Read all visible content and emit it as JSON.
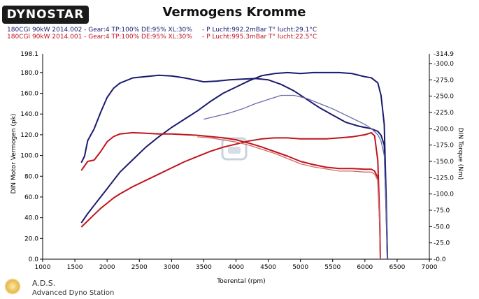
{
  "header": {
    "logo_text": "DYNOSTAR",
    "logo_sub": "",
    "title": "Vermogens Kromme",
    "runs": [
      {
        "label": "180CGI 90kW 2014.002 - Gear:4 TP:100% DE:95% XL:30%     - P Lucht:992.2mBar T° lucht:29.1°C",
        "color": "#1a1a6e"
      },
      {
        "label": "180CGI 90kW 2014.001 - Gear:4 TP:100% DE:95% XL:30%     - P Lucht:995.3mBar T° lucht:22.5°C",
        "color": "#c0141c"
      }
    ]
  },
  "footer": {
    "name": "A.D.S.",
    "subtitle": "Advanced Dyno Station"
  },
  "chart_data": {
    "type": "line",
    "xlabel": "Toerental (rpm)",
    "ylabel": "DIN Motor Vermogen (pk)",
    "y2label": "DIN Torque (Nm)",
    "xlim": [
      1000,
      7000
    ],
    "ylim": [
      0,
      198.1
    ],
    "y2lim": [
      0,
      -314.9
    ],
    "x_ticks": [
      1000,
      1500,
      2000,
      2500,
      3000,
      3500,
      4000,
      4500,
      5000,
      5500,
      6000,
      6500,
      7000
    ],
    "y_ticks": [
      0,
      20,
      40,
      60,
      80,
      100,
      120,
      140,
      160,
      180
    ],
    "y_tick_labels": [
      "0.0",
      "20.0",
      "40.0",
      "60.0",
      "80.0",
      "100.0",
      "120.0",
      "140.0",
      "160.0",
      "180.0"
    ],
    "y_top_label": "198.1",
    "y2_ticks": [
      0,
      -25,
      -50,
      -75,
      -100,
      -125,
      -150,
      -175,
      -200,
      -225,
      -250,
      -275,
      -300
    ],
    "y2_tick_labels": [
      "-0.0",
      "-25.0",
      "-50.0",
      "-75.0",
      "-100.0",
      "-125.0",
      "-150.0",
      "-175.0",
      "-200.0",
      "-225.0",
      "-250.0",
      "-275.0",
      "-300.0"
    ],
    "y2_top_label": "-314.9",
    "grid": false,
    "series": [
      {
        "color": "#1a1a6e",
        "axis": "y",
        "width": 2,
        "x": [
          1600,
          1700,
          1800,
          1900,
          2000,
          2100,
          2200,
          2400,
          2600,
          2800,
          3000,
          3200,
          3400,
          3600,
          3800,
          4000,
          4200,
          4400,
          4600,
          4800,
          5000,
          5200,
          5400,
          5600,
          5800,
          6000,
          6100,
          6200,
          6250,
          6300,
          6330,
          6350
        ],
        "y": [
          35,
          44,
          52,
          60,
          68,
          76,
          84,
          96,
          108,
          118,
          127,
          135,
          143,
          152,
          160,
          166,
          172,
          177,
          179,
          180,
          179,
          180,
          180,
          180,
          179,
          176,
          175,
          170,
          158,
          130,
          60,
          0
        ]
      },
      {
        "color": "#c0141c",
        "axis": "y",
        "width": 2,
        "x": [
          1600,
          1700,
          1800,
          1900,
          2000,
          2100,
          2200,
          2400,
          2600,
          2800,
          3000,
          3200,
          3400,
          3600,
          3800,
          4000,
          4200,
          4400,
          4600,
          4800,
          5000,
          5200,
          5400,
          5600,
          5800,
          6000,
          6100,
          6150,
          6200,
          6230,
          6240
        ],
        "y": [
          31,
          37,
          43,
          49,
          54,
          59,
          63,
          70,
          76,
          82,
          88,
          94,
          99,
          104,
          108,
          111,
          114,
          116,
          117,
          117,
          116,
          116,
          116,
          117,
          118,
          120,
          122,
          119,
          95,
          40,
          0
        ]
      },
      {
        "color": "#1a1a6e",
        "axis": "y2",
        "width": 2,
        "x": [
          1600,
          1650,
          1700,
          1800,
          1900,
          2000,
          2100,
          2200,
          2400,
          2600,
          2800,
          3000,
          3200,
          3400,
          3500,
          3700,
          3900,
          4100,
          4300,
          4500,
          4700,
          4900,
          5100,
          5300,
          5500,
          5700,
          5900,
          6000,
          6100,
          6200,
          6250,
          6300,
          6330,
          6350
        ],
        "y": [
          -148,
          -158,
          -182,
          -200,
          -225,
          -248,
          -262,
          -270,
          -278,
          -280,
          -282,
          -281,
          -278,
          -274,
          -272,
          -273,
          -275,
          -276,
          -277,
          -275,
          -268,
          -258,
          -245,
          -232,
          -221,
          -210,
          -204,
          -202,
          -200,
          -196,
          -190,
          -175,
          -80,
          0
        ]
      },
      {
        "color": "#6a6aa8",
        "axis": "y",
        "width": 1.3,
        "x": [
          3500,
          3700,
          3900,
          4100,
          4300,
          4500,
          4700,
          4900,
          5100,
          5300,
          5500,
          5700,
          5900,
          6000,
          6100,
          6200,
          6250,
          6300,
          6330,
          6350
        ],
        "y": [
          135,
          138,
          141,
          145,
          150,
          154,
          158,
          158,
          155,
          150,
          145,
          139,
          133,
          130,
          126,
          120,
          114,
          100,
          45,
          0
        ]
      },
      {
        "color": "#c0141c",
        "axis": "y2",
        "width": 2,
        "x": [
          1600,
          1700,
          1800,
          1900,
          2000,
          2100,
          2200,
          2400,
          2600,
          2800,
          3000,
          3200,
          3400,
          3600,
          3800,
          4000,
          4200,
          4400,
          4600,
          4800,
          5000,
          5200,
          5400,
          5600,
          5800,
          6000,
          6100,
          6150,
          6200,
          6230,
          6240
        ],
        "y": [
          -136,
          -150,
          -152,
          -165,
          -180,
          -188,
          -192,
          -194,
          -193,
          -192,
          -192,
          -191,
          -190,
          -188,
          -186,
          -183,
          -178,
          -172,
          -165,
          -158,
          -150,
          -145,
          -141,
          -139,
          -139,
          -138,
          -138,
          -135,
          -125,
          -60,
          0
        ]
      },
      {
        "color": "#d06a6a",
        "axis": "y",
        "width": 1.3,
        "x": [
          3400,
          3600,
          3800,
          4000,
          4200,
          4400,
          4600,
          4800,
          5000,
          5200,
          5400,
          5600,
          5800,
          6000,
          6100,
          6150,
          6200,
          6230,
          6240
        ],
        "y": [
          118,
          117,
          115,
          113,
          110,
          106,
          102,
          97,
          92,
          89,
          87,
          85,
          85,
          84,
          84,
          82,
          76,
          35,
          0
        ]
      }
    ]
  }
}
